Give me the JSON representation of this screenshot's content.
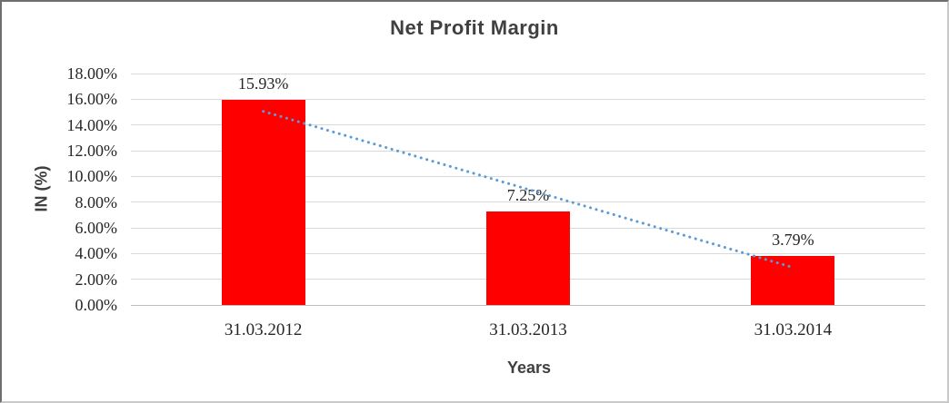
{
  "chart_data": {
    "type": "bar",
    "title": "Net Profit Margin",
    "categories": [
      "31.03.2012",
      "31.03.2013",
      "31.03.2014"
    ],
    "values": [
      15.93,
      7.25,
      3.79
    ],
    "data_labels": [
      "15.93%",
      "7.25%",
      "3.79%"
    ],
    "xlabel": "Years",
    "ylabel": "IN (%)",
    "ylim": [
      0,
      18
    ],
    "y_tick_step": 2,
    "y_tick_labels": [
      "0.00%",
      "2.00%",
      "4.00%",
      "6.00%",
      "8.00%",
      "10.00%",
      "12.00%",
      "14.00%",
      "16.00%",
      "18.00%"
    ],
    "grid": true,
    "legend": "none",
    "bar_color": "#ff0000",
    "trendline": {
      "type": "linear",
      "style": "dotted",
      "color": "#5b9bd5",
      "start_value": 15.06,
      "end_value": 2.92
    },
    "colors": {
      "title": "#404040",
      "axis_titles": "#404040",
      "tick_labels": "#262626",
      "gridline": "#d9d9d9",
      "baseline": "#bfbfbf"
    }
  }
}
